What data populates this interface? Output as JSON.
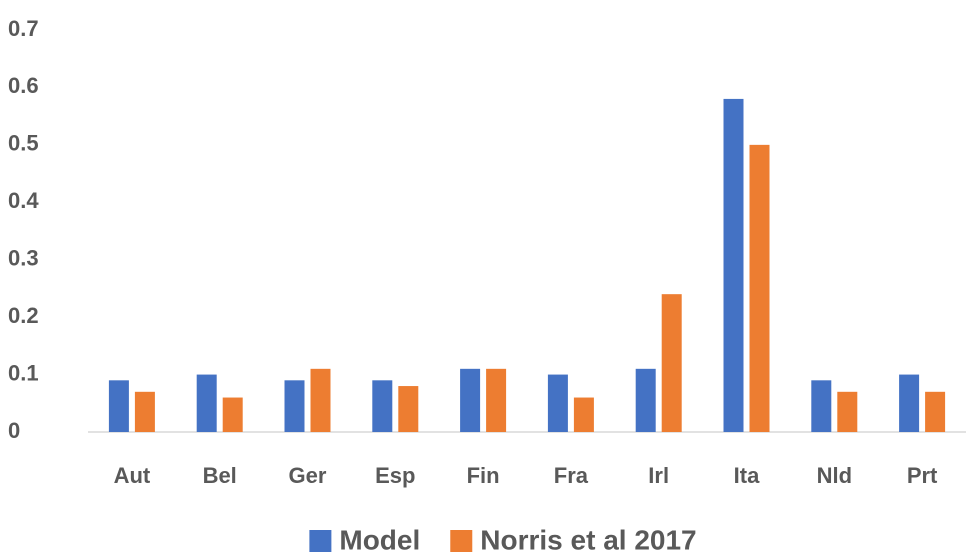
{
  "chart_data": {
    "type": "bar",
    "categories": [
      "Aut",
      "Bel",
      "Ger",
      "Esp",
      "Fin",
      "Fra",
      "Irl",
      "Ita",
      "Nld",
      "Prt"
    ],
    "series": [
      {
        "name": "Model",
        "color": "#4472c4",
        "values": [
          0.09,
          0.1,
          0.09,
          0.09,
          0.11,
          0.1,
          0.11,
          0.58,
          0.09,
          0.1
        ]
      },
      {
        "name": "Norris et al 2017",
        "color": "#ed7d31",
        "values": [
          0.07,
          0.06,
          0.11,
          0.08,
          0.11,
          0.06,
          0.24,
          0.5,
          0.07,
          0.07
        ]
      }
    ],
    "ylim": [
      0,
      0.7
    ],
    "yticks": [
      0,
      0.1,
      0.2,
      0.3,
      0.4,
      0.5,
      0.6,
      0.7
    ],
    "grid": false,
    "legend": "bottom"
  }
}
